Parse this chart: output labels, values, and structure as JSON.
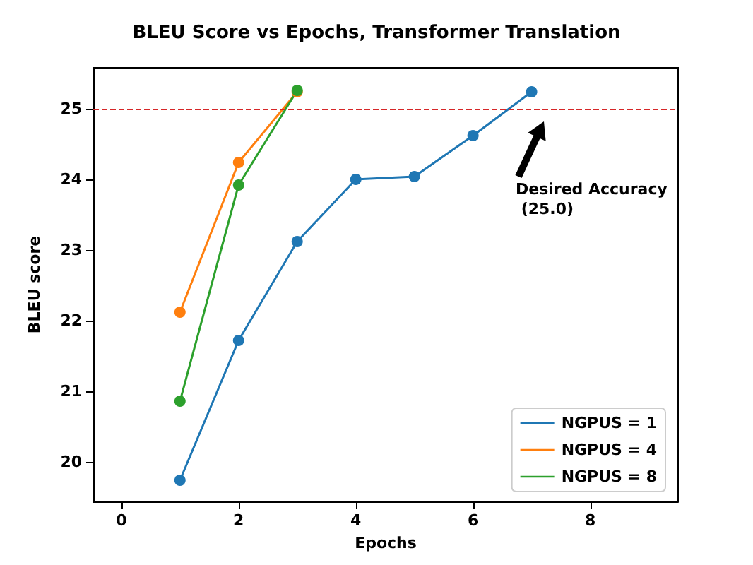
{
  "chart_data": {
    "type": "line",
    "title": "BLEU Score vs Epochs, Transformer Translation",
    "xlabel": "Epochs",
    "ylabel": "BLEU score",
    "series": [
      {
        "name": "NGPUS = 1",
        "color": "#1f77b4",
        "x": [
          1,
          2,
          3,
          4,
          5,
          6,
          7
        ],
        "values": [
          19.74,
          21.72,
          23.12,
          24.0,
          24.04,
          24.62,
          25.24
        ]
      },
      {
        "name": "NGPUS = 4",
        "color": "#ff7f0e",
        "x": [
          1,
          2,
          3
        ],
        "values": [
          22.12,
          24.24,
          25.24
        ]
      },
      {
        "name": "NGPUS = 8",
        "color": "#2ca02c",
        "x": [
          1,
          2,
          3
        ],
        "values": [
          20.86,
          23.92,
          25.26
        ]
      }
    ],
    "xlim": [
      -0.48,
      9.5
    ],
    "xticks": [
      0,
      2,
      4,
      6,
      8
    ],
    "ylim": [
      19.44,
      25.58
    ],
    "yticks": [
      20,
      21,
      22,
      23,
      24,
      25
    ],
    "ref_lines": [
      {
        "axis": "y",
        "value": 25.0,
        "color": "#d62728",
        "line_style": "dashed"
      }
    ],
    "annotations": [
      "Desired Accuracy\n (25.0)"
    ],
    "marker": "circle",
    "line_style": "solid",
    "grid": false,
    "legend": "bottom right"
  }
}
